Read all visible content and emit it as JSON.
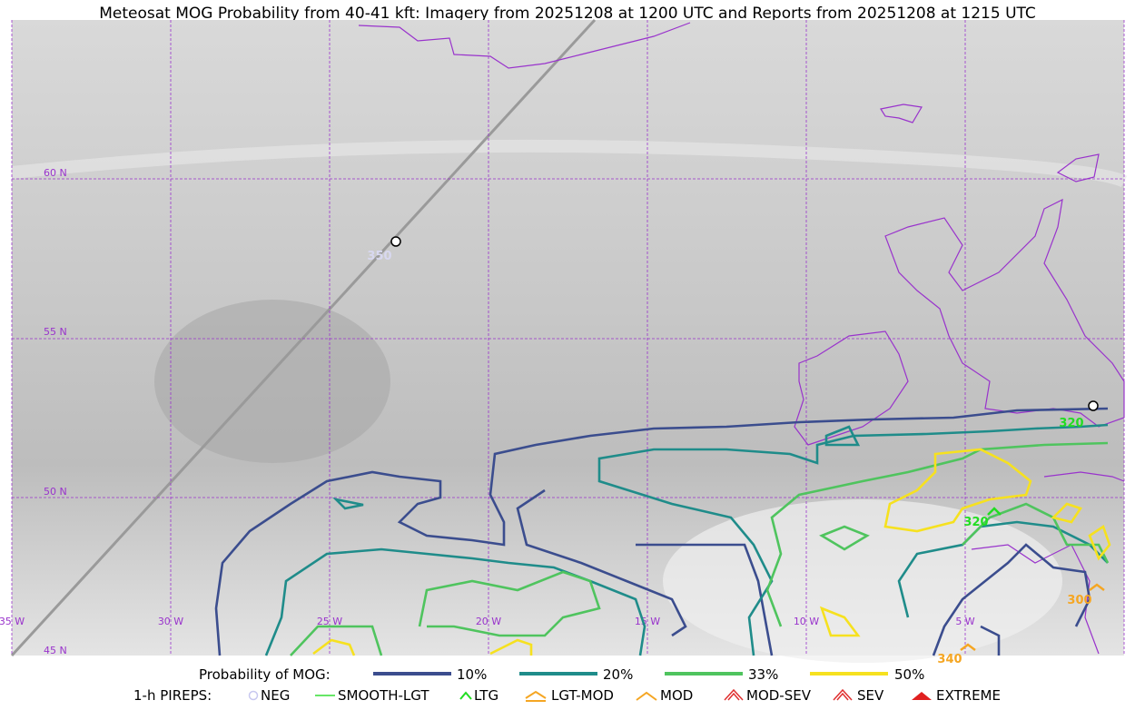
{
  "title": "Meteosat MOG Probability from 40-41 kft: Imagery from 20251208 at 1200 UTC and Reports from 20251208 at 1215 UTC",
  "grid": {
    "lat_labels": [
      "60 N",
      "55 N",
      "50 N",
      "45 N"
    ],
    "lon_labels": [
      "35 W",
      "30 W",
      "25 W",
      "20 W",
      "15 W",
      "10 W",
      "5 W"
    ]
  },
  "reports": [
    "350",
    "320",
    "320",
    "300",
    "340"
  ],
  "legend": {
    "probability": {
      "title": "Probability of MOG:",
      "items": [
        "10%",
        "20%",
        "33%",
        "50%"
      ]
    },
    "pireps": {
      "title": "1-h PIREPS:",
      "items": [
        "NEG",
        "SMOOTH-LGT",
        "LTG",
        "LGT-MOD",
        "MOD",
        "MOD-SEV",
        "SEV",
        "EXTREME"
      ]
    }
  }
}
